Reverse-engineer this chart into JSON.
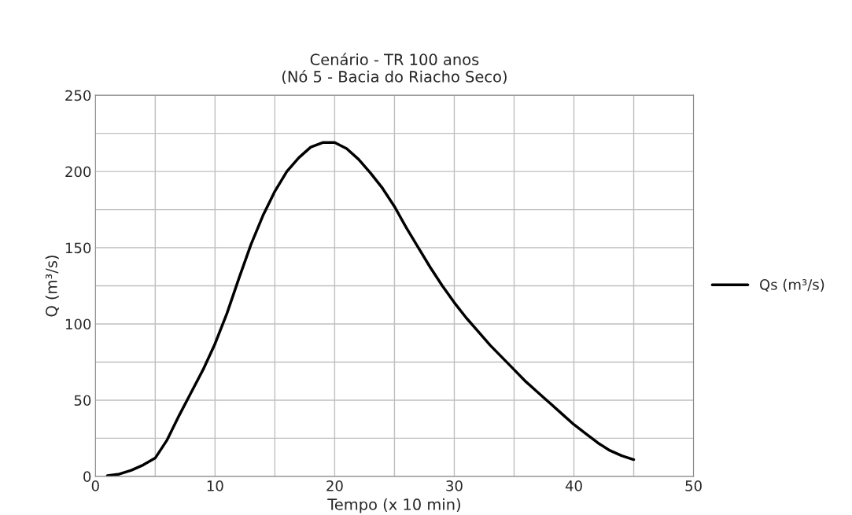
{
  "chart_data": {
    "type": "line",
    "title": "Cenário - TR 100 anos\n(Nó 5 - Bacia do Riacho Seco)",
    "xlabel": "Tempo (x 10 min)",
    "ylabel": "Q (m³/s)",
    "x": [
      1,
      2,
      3,
      4,
      5,
      6,
      7,
      8,
      9,
      10,
      11,
      12,
      13,
      14,
      15,
      16,
      17,
      18,
      19,
      20,
      21,
      22,
      23,
      24,
      25,
      26,
      27,
      28,
      29,
      30,
      31,
      32,
      33,
      34,
      35,
      36,
      37,
      38,
      39,
      40,
      41,
      42,
      43,
      44,
      45
    ],
    "series": [
      {
        "name": "Qs (m³/s)",
        "color": "#000000",
        "values": [
          0.5,
          1.5,
          4,
          7.5,
          12,
          24,
          40,
          55,
          70,
          87,
          107,
          130,
          152,
          171,
          187,
          200,
          209,
          216,
          219,
          219,
          215,
          208,
          199,
          189,
          177,
          163,
          150,
          137,
          125,
          114,
          104,
          95,
          86,
          78,
          70,
          62,
          55,
          48,
          41,
          34,
          28,
          22,
          17,
          13.5,
          11
        ]
      }
    ],
    "xlim": [
      0,
      50
    ],
    "xticks": [
      0,
      {
        "value": 5,
        "label": null
      },
      10,
      {
        "value": 15,
        "label": null
      },
      20,
      {
        "value": 25,
        "label": null
      },
      30,
      {
        "value": 35,
        "label": null
      },
      40,
      {
        "value": 45,
        "label": null
      },
      50
    ],
    "ylim": [
      0,
      250
    ],
    "yticks": [
      0,
      {
        "value": 25,
        "label": null
      },
      50,
      {
        "value": 75,
        "label": null
      },
      100,
      {
        "value": 125,
        "label": null
      },
      150,
      {
        "value": 175,
        "label": null
      },
      200,
      {
        "value": 225,
        "label": null
      },
      250
    ],
    "grid": true,
    "legend": "right",
    "marker": "none",
    "line_style": "solid"
  }
}
